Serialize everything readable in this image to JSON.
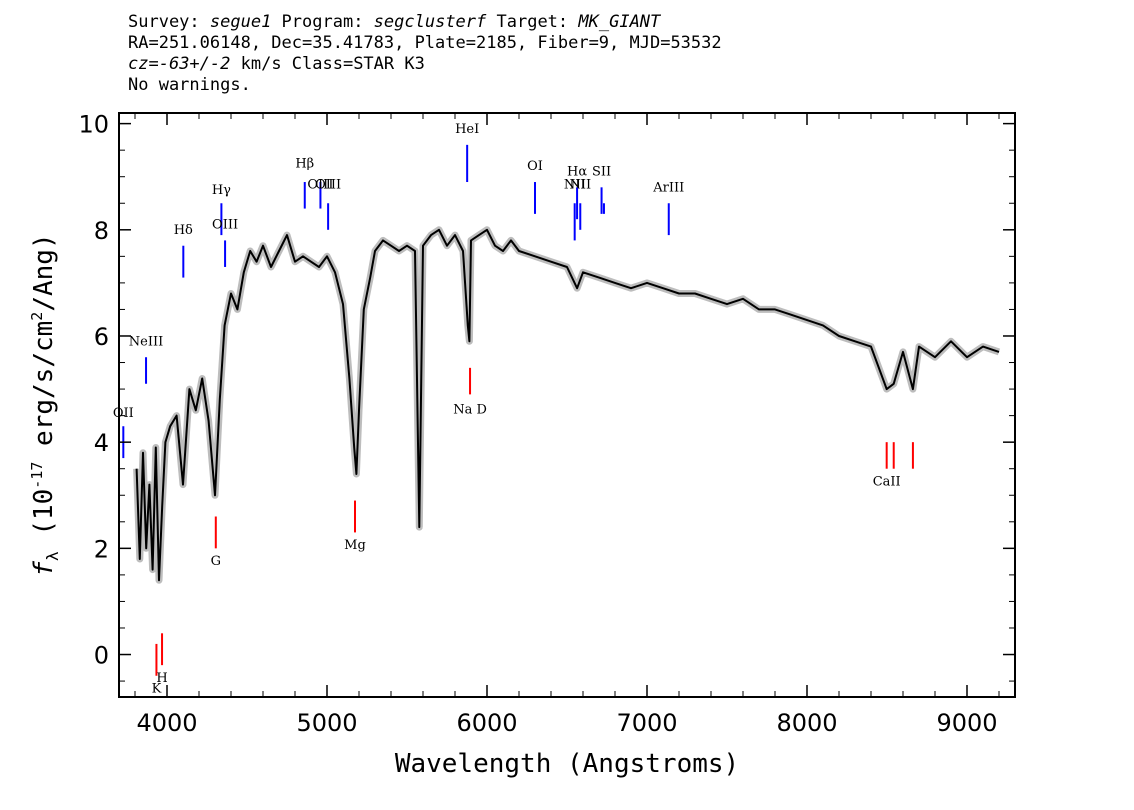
{
  "header": {
    "survey_label": "Survey: ",
    "survey": "segue1",
    "program_label": " Program: ",
    "program": "segclusterf",
    "target_label": " Target: ",
    "target": "MK_GIANT",
    "line2": "RA=251.06148, Dec=35.41783, Plate=2185, Fiber=9, MJD=53532",
    "cz_label": "cz",
    "cz_value": "=-63+/-2",
    "cz_rest": " km/s Class=STAR K3",
    "line4": "No warnings."
  },
  "chart_data": {
    "type": "line",
    "xlabel": "Wavelength (Angstroms)",
    "ylabel": "f_λ (10^-17 erg/s/cm^2/Ang)",
    "xlim": [
      3700,
      9300
    ],
    "ylim": [
      -0.8,
      10.2
    ],
    "x_ticks": [
      4000,
      5000,
      6000,
      7000,
      8000,
      9000
    ],
    "y_ticks": [
      0,
      2,
      4,
      6,
      8,
      10
    ],
    "series": [
      {
        "color": "#000000",
        "x": [
          3810,
          3830,
          3850,
          3870,
          3890,
          3910,
          3930,
          3950,
          3970,
          3990,
          4020,
          4060,
          4100,
          4140,
          4180,
          4220,
          4260,
          4300,
          4330,
          4360,
          4400,
          4440,
          4480,
          4520,
          4560,
          4600,
          4650,
          4700,
          4750,
          4800,
          4850,
          4900,
          4950,
          5000,
          5050,
          5100,
          5140,
          5170,
          5184,
          5200,
          5230,
          5270,
          5300,
          5350,
          5400,
          5450,
          5500,
          5550,
          5577,
          5600,
          5650,
          5700,
          5750,
          5800,
          5850,
          5880,
          5890,
          5900,
          5950,
          6000,
          6050,
          6100,
          6150,
          6200,
          6300,
          6400,
          6500,
          6563,
          6600,
          6700,
          6800,
          6900,
          7000,
          7100,
          7200,
          7300,
          7400,
          7500,
          7600,
          7700,
          7800,
          7900,
          8000,
          8100,
          8200,
          8300,
          8400,
          8498,
          8542,
          8600,
          8662,
          8700,
          8800,
          8900,
          9000,
          9100,
          9200
        ],
        "y": [
          3.5,
          1.8,
          3.8,
          2.0,
          3.2,
          1.6,
          3.9,
          1.4,
          2.8,
          4.0,
          4.3,
          4.5,
          3.2,
          5.0,
          4.6,
          5.2,
          4.4,
          3.0,
          4.8,
          6.2,
          6.8,
          6.5,
          7.2,
          7.6,
          7.4,
          7.7,
          7.3,
          7.6,
          7.9,
          7.4,
          7.5,
          7.4,
          7.3,
          7.5,
          7.2,
          6.6,
          5.2,
          3.9,
          3.4,
          4.6,
          6.5,
          7.1,
          7.6,
          7.8,
          7.7,
          7.6,
          7.7,
          7.6,
          2.4,
          7.7,
          7.9,
          8.0,
          7.7,
          7.9,
          7.6,
          6.2,
          5.9,
          7.8,
          7.9,
          8.0,
          7.7,
          7.6,
          7.8,
          7.6,
          7.5,
          7.4,
          7.3,
          6.9,
          7.2,
          7.1,
          7.0,
          6.9,
          7.0,
          6.9,
          6.8,
          6.8,
          6.7,
          6.6,
          6.7,
          6.5,
          6.5,
          6.4,
          6.3,
          6.2,
          6.0,
          5.9,
          5.8,
          5.0,
          5.1,
          5.7,
          5.0,
          5.8,
          5.6,
          5.9,
          5.6,
          5.8,
          5.7
        ]
      }
    ],
    "line_labels": [
      {
        "text": "OII",
        "wave": 3727,
        "color": "#0000ff",
        "y_top": 4.3,
        "y_bot": 3.7,
        "label_y": 4.4,
        "pos": "above"
      },
      {
        "text": "NeIII",
        "wave": 3869,
        "color": "#0000ff",
        "y_top": 5.6,
        "y_bot": 5.1,
        "label_y": 5.75,
        "pos": "above"
      },
      {
        "text": "Hδ",
        "wave": 4102,
        "color": "#0000ff",
        "y_top": 7.7,
        "y_bot": 7.1,
        "label_y": 7.85,
        "pos": "above"
      },
      {
        "text": "Hγ",
        "wave": 4340,
        "color": "#0000ff",
        "y_top": 8.5,
        "y_bot": 7.9,
        "label_y": 8.6,
        "pos": "above"
      },
      {
        "text": "OIII",
        "wave": 4363,
        "color": "#0000ff",
        "y_top": 7.8,
        "y_bot": 7.3,
        "label_y": 7.95,
        "pos": "above"
      },
      {
        "text": "Hβ",
        "wave": 4861,
        "color": "#0000ff",
        "y_top": 8.9,
        "y_bot": 8.4,
        "label_y": 9.1,
        "pos": "above"
      },
      {
        "text": "OIII",
        "wave": 4959,
        "color": "#0000ff",
        "y_top": 8.9,
        "y_bot": 8.4,
        "label_y": 8.7,
        "pos": "above"
      },
      {
        "text": "OIII",
        "wave": 5007,
        "color": "#0000ff",
        "y_top": 8.5,
        "y_bot": 8.0,
        "label_y": 8.7,
        "pos": "above"
      },
      {
        "text": "HeI",
        "wave": 5876,
        "color": "#0000ff",
        "y_top": 9.6,
        "y_bot": 8.9,
        "label_y": 9.75,
        "pos": "above"
      },
      {
        "text": "OI",
        "wave": 6300,
        "color": "#0000ff",
        "y_top": 8.9,
        "y_bot": 8.3,
        "label_y": 9.05,
        "pos": "above"
      },
      {
        "text": "NII",
        "wave": 6548,
        "color": "#0000ff",
        "y_top": 8.5,
        "y_bot": 7.8,
        "label_y": 8.7,
        "pos": "above"
      },
      {
        "text": "Hα",
        "wave": 6563,
        "color": "#0000ff",
        "y_top": 8.8,
        "y_bot": 8.2,
        "label_y": 8.95,
        "pos": "above"
      },
      {
        "text": "NII",
        "wave": 6583,
        "color": "#0000ff",
        "y_top": 8.5,
        "y_bot": 8.0,
        "label_y": 8.7,
        "pos": "above"
      },
      {
        "text": "SII",
        "wave": 6716,
        "color": "#0000ff",
        "y_top": 8.8,
        "y_bot": 8.3,
        "label_y": 8.95,
        "pos": "above"
      },
      {
        "text": "",
        "wave": 6731,
        "color": "#0000ff",
        "y_top": 8.5,
        "y_bot": 8.3,
        "label_y": 8.7,
        "pos": "above"
      },
      {
        "text": "ArIII",
        "wave": 7136,
        "color": "#0000ff",
        "y_top": 8.5,
        "y_bot": 7.9,
        "label_y": 8.65,
        "pos": "above"
      },
      {
        "text": "K",
        "wave": 3934,
        "color": "#ff0000",
        "y_top": 0.2,
        "y_bot": -0.4,
        "label_y": -0.6,
        "pos": "below"
      },
      {
        "text": "H",
        "wave": 3969,
        "color": "#ff0000",
        "y_top": 0.4,
        "y_bot": -0.2,
        "label_y": -0.4,
        "pos": "below"
      },
      {
        "text": "G",
        "wave": 4305,
        "color": "#ff0000",
        "y_top": 2.6,
        "y_bot": 2.0,
        "label_y": 1.8,
        "pos": "below"
      },
      {
        "text": "Mg",
        "wave": 5175,
        "color": "#ff0000",
        "y_top": 2.9,
        "y_bot": 2.3,
        "label_y": 2.1,
        "pos": "below"
      },
      {
        "text": "Na  D",
        "wave": 5894,
        "color": "#ff0000",
        "y_top": 5.4,
        "y_bot": 4.9,
        "label_y": 4.65,
        "pos": "below"
      },
      {
        "text": "CaII",
        "wave": 8498,
        "color": "#ff0000",
        "y_top": 4.0,
        "y_bot": 3.5,
        "label_y": 3.3,
        "pos": "below"
      },
      {
        "text": "",
        "wave": 8542,
        "color": "#ff0000",
        "y_top": 4.0,
        "y_bot": 3.5,
        "label_y": 3.3,
        "pos": "below"
      },
      {
        "text": "",
        "wave": 8662,
        "color": "#ff0000",
        "y_top": 4.0,
        "y_bot": 3.5,
        "label_y": 3.3,
        "pos": "below"
      }
    ]
  },
  "colors": {
    "spectrum": "#000000",
    "error_band": "#bdbdbd",
    "emission_marker": "#0000ff",
    "absorption_marker": "#ff0000"
  }
}
